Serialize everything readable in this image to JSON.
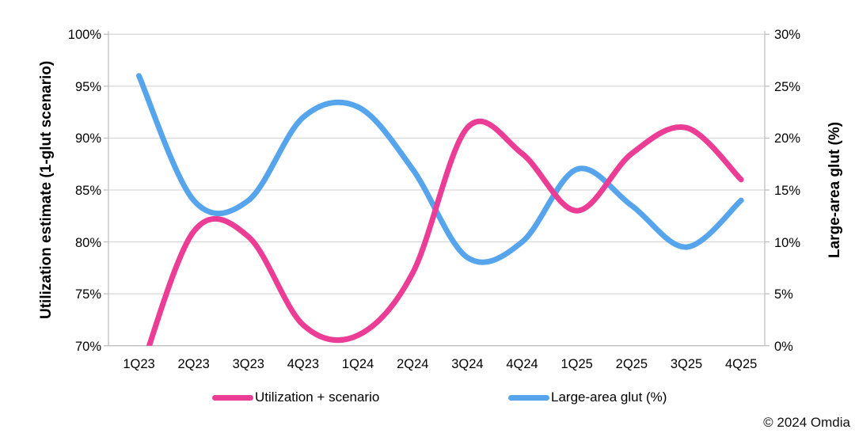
{
  "chart_data": {
    "type": "line",
    "smooth": true,
    "grid": "horizontal-only",
    "legend_position": "bottom",
    "categories": [
      "1Q23",
      "2Q23",
      "3Q23",
      "4Q23",
      "1Q24",
      "2Q24",
      "3Q24",
      "4Q24",
      "1Q25",
      "2Q25",
      "3Q25",
      "4Q25"
    ],
    "series": [
      {
        "name": "Utilization + scenario",
        "axis": "left",
        "color": "#EB3C96",
        "values": [
          67,
          81,
          80.5,
          72,
          71,
          77,
          91,
          88.5,
          83,
          88.5,
          91,
          86
        ]
      },
      {
        "name": "Large-area glut (%)",
        "axis": "right",
        "color": "#56A5EC",
        "values": [
          26,
          14,
          14,
          22,
          23,
          17,
          8.5,
          10,
          17,
          13.5,
          9.5,
          14
        ]
      }
    ],
    "left_axis": {
      "label": "Utilization estimate (1-glut scenario)",
      "min": 70,
      "max": 100,
      "step": 5,
      "tick_labels": [
        "70%",
        "75%",
        "80%",
        "85%",
        "90%",
        "95%",
        "100%"
      ]
    },
    "right_axis": {
      "label": "Large-area glut (%)",
      "min": 0,
      "max": 30,
      "step": 5,
      "tick_labels": [
        "0%",
        "5%",
        "10%",
        "15%",
        "20%",
        "25%",
        "30%"
      ]
    }
  },
  "colors": {
    "pink": "#EB3C96",
    "blue": "#56A5EC",
    "gridline": "#D9D9D9",
    "axis_line": "#BFBFBF"
  },
  "footer": {
    "copyright": "© 2024 Omdia"
  }
}
